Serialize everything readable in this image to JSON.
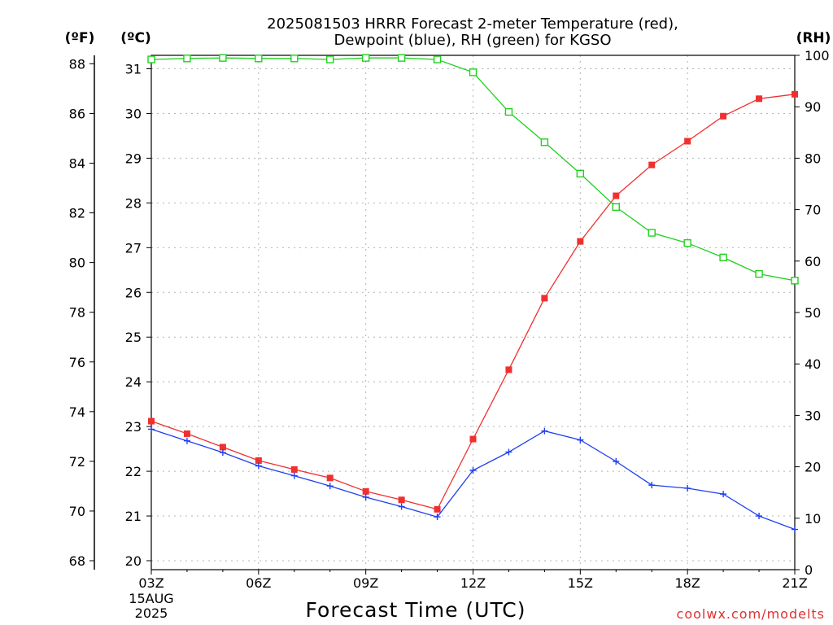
{
  "chart_data": {
    "type": "line",
    "title_line1": "2025081503 HRRR Forecast 2-meter Temperature (red),",
    "title_line2": "Dewpoint (blue), RH (green) for KGSO",
    "left_unit_f": "(ºF)",
    "left_unit_c": "(ºC)",
    "right_unit": "(RH)",
    "xlabel": "Forecast Time (UTC)",
    "credit": "coolwx.com/modelts",
    "date_day": "15AUG",
    "date_year": "2025",
    "hours": [
      3,
      4,
      5,
      6,
      7,
      8,
      9,
      10,
      11,
      12,
      13,
      14,
      15,
      16,
      17,
      18,
      19,
      20,
      21
    ],
    "x_ticks": [
      {
        "hour": 3,
        "label": "03Z"
      },
      {
        "hour": 6,
        "label": "06Z"
      },
      {
        "hour": 9,
        "label": "09Z"
      },
      {
        "hour": 12,
        "label": "12Z"
      },
      {
        "hour": 15,
        "label": "15Z"
      },
      {
        "hour": 18,
        "label": "18Z"
      },
      {
        "hour": 21,
        "label": "21Z"
      }
    ],
    "celsius_ticks": [
      "20",
      "21",
      "22",
      "23",
      "24",
      "25",
      "26",
      "27",
      "28",
      "29",
      "30",
      "31"
    ],
    "fahrenheit_ticks": [
      "68",
      "70",
      "72",
      "74",
      "76",
      "78",
      "80",
      "82",
      "84",
      "86",
      "88"
    ],
    "rh_ticks": [
      "0",
      "10",
      "20",
      "30",
      "40",
      "50",
      "60",
      "70",
      "80",
      "90",
      "100"
    ],
    "ylim_celsius": [
      19.8,
      31.3
    ],
    "ylim_rh": [
      0,
      100
    ],
    "xlim": [
      3,
      21
    ],
    "grid": true,
    "series": [
      {
        "name": "Temperature (red)",
        "axis": "celsius",
        "color": "#f03030",
        "marker": "filled-square",
        "values": [
          23.12,
          22.84,
          22.54,
          22.24,
          22.04,
          21.85,
          21.55,
          21.36,
          21.15,
          22.72,
          24.27,
          25.87,
          27.14,
          28.16,
          28.85,
          29.38,
          29.94,
          30.33,
          30.43
        ]
      },
      {
        "name": "Dewpoint (blue)",
        "axis": "celsius",
        "color": "#2040f0",
        "marker": "plus",
        "values": [
          22.94,
          22.68,
          22.42,
          22.12,
          21.9,
          21.67,
          21.42,
          21.21,
          20.98,
          22.02,
          22.43,
          22.9,
          22.7,
          22.22,
          21.69,
          21.62,
          21.49,
          21.0,
          20.7
        ]
      },
      {
        "name": "RH (green)",
        "axis": "rh",
        "color": "#20d020",
        "marker": "open-square",
        "values": [
          99.2,
          99.4,
          99.5,
          99.4,
          99.4,
          99.2,
          99.5,
          99.5,
          99.2,
          96.7,
          89.0,
          83.1,
          77.0,
          70.5,
          65.5,
          63.5,
          60.7,
          57.5,
          56.2
        ]
      }
    ]
  }
}
